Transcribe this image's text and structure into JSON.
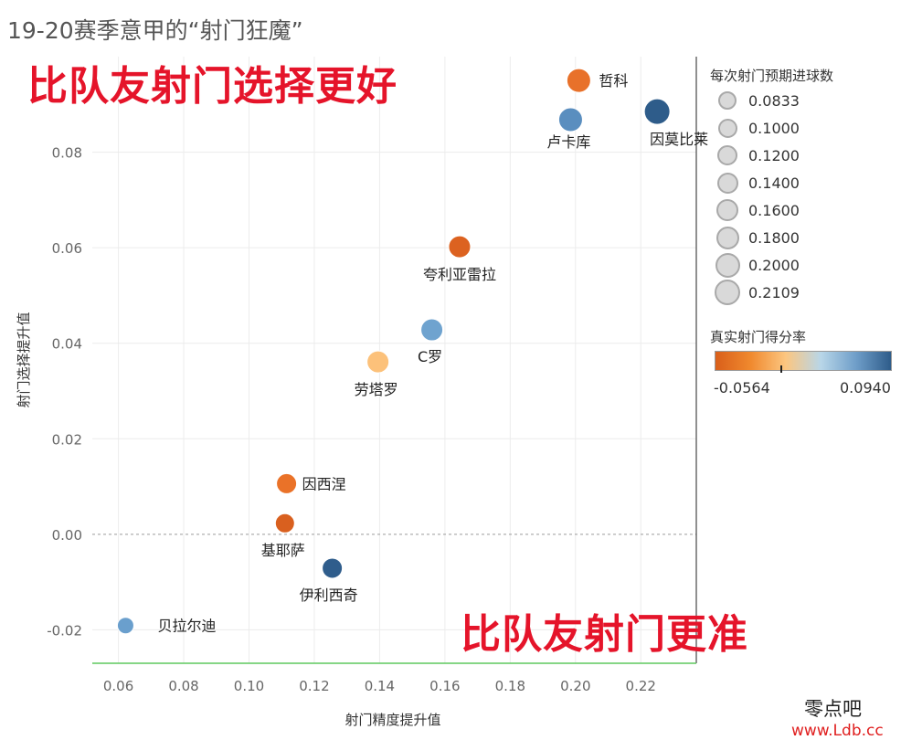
{
  "title": "19-20赛季意甲的“射门狂魔”",
  "annotations": {
    "top": "比队友射门选择更好",
    "bottom": "比队友射门更准"
  },
  "legend": {
    "size_title": "每次射门预期进球数",
    "size_items": [
      "0.0833",
      "0.1000",
      "0.1200",
      "0.1400",
      "0.1600",
      "0.1800",
      "0.2000",
      "0.2109"
    ],
    "color_title": "真实射门得分率",
    "color_min": "-0.0564",
    "color_max": "0.0940",
    "color_stops": [
      "#d95f1a",
      "#f0892e",
      "#fcc680",
      "#b8d6e8",
      "#6f9ec9",
      "#2e5c8a"
    ]
  },
  "watermark": {
    "text": "零点吧",
    "url": "www.Ldb.cc"
  },
  "chart_data": {
    "type": "scatter",
    "xlabel": "射门精度提升值",
    "ylabel": "射门选择提升值",
    "xlim": [
      0.052,
      0.237
    ],
    "ylim": [
      -0.027,
      0.1
    ],
    "xticks": [
      "0.06",
      "0.08",
      "0.10",
      "0.12",
      "0.14",
      "0.16",
      "0.18",
      "0.20",
      "0.22"
    ],
    "yticks": [
      "-0.02",
      "0.00",
      "0.02",
      "0.04",
      "0.06",
      "0.08"
    ],
    "points": [
      {
        "label": "哲科",
        "x": 0.201,
        "y": 0.095,
        "color": "#e8712a"
      },
      {
        "label": "卢卡库",
        "x": 0.1985,
        "y": 0.0868,
        "color": "#5a8ebf"
      },
      {
        "label": "因莫比莱",
        "x": 0.225,
        "y": 0.0885,
        "color": "#2e5c8a"
      },
      {
        "label": "夸利亚雷拉",
        "x": 0.1645,
        "y": 0.0602,
        "color": "#dc6220"
      },
      {
        "label": "C罗",
        "x": 0.156,
        "y": 0.0428,
        "color": "#6fa3cf"
      },
      {
        "label": "劳塔罗",
        "x": 0.1395,
        "y": 0.0361,
        "color": "#fcc17a"
      },
      {
        "label": "因西涅",
        "x": 0.1115,
        "y": 0.0106,
        "color": "#ea7228"
      },
      {
        "label": "基耶萨",
        "x": 0.111,
        "y": 0.0023,
        "color": "#d9601f"
      },
      {
        "label": "伊利西奇",
        "x": 0.1255,
        "y": -0.0071,
        "color": "#2f5d8c"
      },
      {
        "label": "贝拉尔迪",
        "x": 0.0622,
        "y": -0.0191,
        "color": "#6a9fcd"
      }
    ]
  }
}
